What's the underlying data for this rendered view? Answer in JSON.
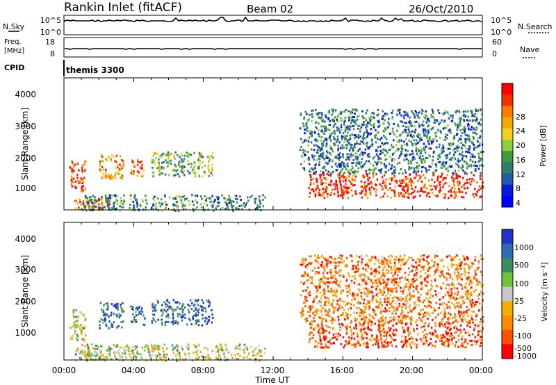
{
  "header": {
    "station": "Rankin Inlet (fitACF)",
    "beam": "Beam 02",
    "date": "26/Oct/2010"
  },
  "strips": {
    "nsky": {
      "label": "N.Sky",
      "ticks": [
        "10^5",
        "10^0"
      ]
    },
    "nsearch": {
      "label": "N.Search",
      "ticks": [
        "10^5",
        "10^0"
      ]
    },
    "freq": {
      "label_line1": "Freq.",
      "label_line2": "[MHz]",
      "ticks": [
        "18",
        "8"
      ]
    },
    "nave": {
      "label": "Nave",
      "ticks": [
        "60",
        "0"
      ]
    },
    "cpid": {
      "label": "CPID",
      "value": "themis 3300"
    }
  },
  "chart_data": [
    {
      "type": "heatmap",
      "name": "power",
      "ylabel": "Slant Range [km]",
      "xlabel": "",
      "y_ticks": [
        "4000",
        "3000",
        "2000",
        "1000"
      ],
      "ylim": [
        180,
        4500
      ],
      "x_ticks": [
        "00:00",
        "04:00",
        "08:00",
        "12:00",
        "16:00",
        "20:00",
        "00:00"
      ],
      "xlim_hours": [
        0,
        24
      ],
      "colorbar": {
        "label": "Power [dB]",
        "tick_labels": [
          "28",
          "24",
          "20",
          "16",
          "12",
          "8",
          "4"
        ],
        "colors_top_to_bottom": [
          "#ff0000",
          "#f23000",
          "#ff7a00",
          "#f4a900",
          "#f1d11b",
          "#8ccf3b",
          "#3c9a3f",
          "#2e7e6a",
          "#205fa8",
          "#0a19d8",
          "#0000ff"
        ]
      },
      "echo_regions": [
        {
          "hours": [
            0.3,
            1.2
          ],
          "range_km": [
            800,
            1800
          ],
          "level": 0.9
        },
        {
          "hours": [
            0.6,
            2.6
          ],
          "range_km": [
            180,
            600
          ],
          "level": 0.85
        },
        {
          "hours": [
            2.0,
            3.4
          ],
          "range_km": [
            1200,
            2000
          ],
          "level": 0.7
        },
        {
          "hours": [
            3.8,
            4.6
          ],
          "range_km": [
            1300,
            1900
          ],
          "level": 0.8
        },
        {
          "hours": [
            5.0,
            8.5
          ],
          "range_km": [
            1300,
            2100
          ],
          "level": 0.45
        },
        {
          "hours": [
            1.0,
            11.5
          ],
          "range_km": [
            180,
            700
          ],
          "level": 0.35
        },
        {
          "hours": [
            14.0,
            24.0
          ],
          "range_km": [
            600,
            1400
          ],
          "level": 0.9
        },
        {
          "hours": [
            13.5,
            24.0
          ],
          "range_km": [
            1400,
            3500
          ],
          "level": 0.3
        }
      ]
    },
    {
      "type": "heatmap",
      "name": "velocity",
      "ylabel": "Slant Range [km]",
      "xlabel": "Time UT",
      "y_ticks": [
        "4000",
        "3000",
        "2000",
        "1000"
      ],
      "ylim": [
        180,
        4500
      ],
      "x_ticks": [
        "00:00",
        "04:00",
        "08:00",
        "12:00",
        "16:00",
        "20:00",
        "00:00"
      ],
      "xlim_hours": [
        0,
        24
      ],
      "colorbar": {
        "label": "Velocity [m s⁻¹]",
        "tick_labels": [
          "1000",
          "500",
          "100",
          "25",
          "-25",
          "-100",
          "-500",
          "-1000"
        ],
        "colors_top_to_bottom": [
          "#2232c8",
          "#2f6ab0",
          "#3a8e5e",
          "#6fc33a",
          "#c8c8c8",
          "#f2b100",
          "#ff8c00",
          "#ff5000",
          "#ff0000"
        ]
      },
      "echo_regions": [
        {
          "hours": [
            0.3,
            1.2
          ],
          "range_km": [
            800,
            1800
          ],
          "level": 0.55
        },
        {
          "hours": [
            0.6,
            2.6
          ],
          "range_km": [
            180,
            600
          ],
          "level": 0.6
        },
        {
          "hours": [
            2.0,
            3.4
          ],
          "range_km": [
            1200,
            2000
          ],
          "level": 0.85
        },
        {
          "hours": [
            3.8,
            4.6
          ],
          "range_km": [
            1300,
            1900
          ],
          "level": 0.85
        },
        {
          "hours": [
            5.0,
            8.5
          ],
          "range_km": [
            1300,
            2100
          ],
          "level": 0.85
        },
        {
          "hours": [
            1.0,
            11.5
          ],
          "range_km": [
            180,
            700
          ],
          "level": 0.5
        },
        {
          "hours": [
            14.0,
            24.0
          ],
          "range_km": [
            600,
            1400
          ],
          "level": 0.15
        },
        {
          "hours": [
            13.5,
            24.0
          ],
          "range_km": [
            1400,
            3500
          ],
          "level": 0.25
        }
      ]
    }
  ]
}
